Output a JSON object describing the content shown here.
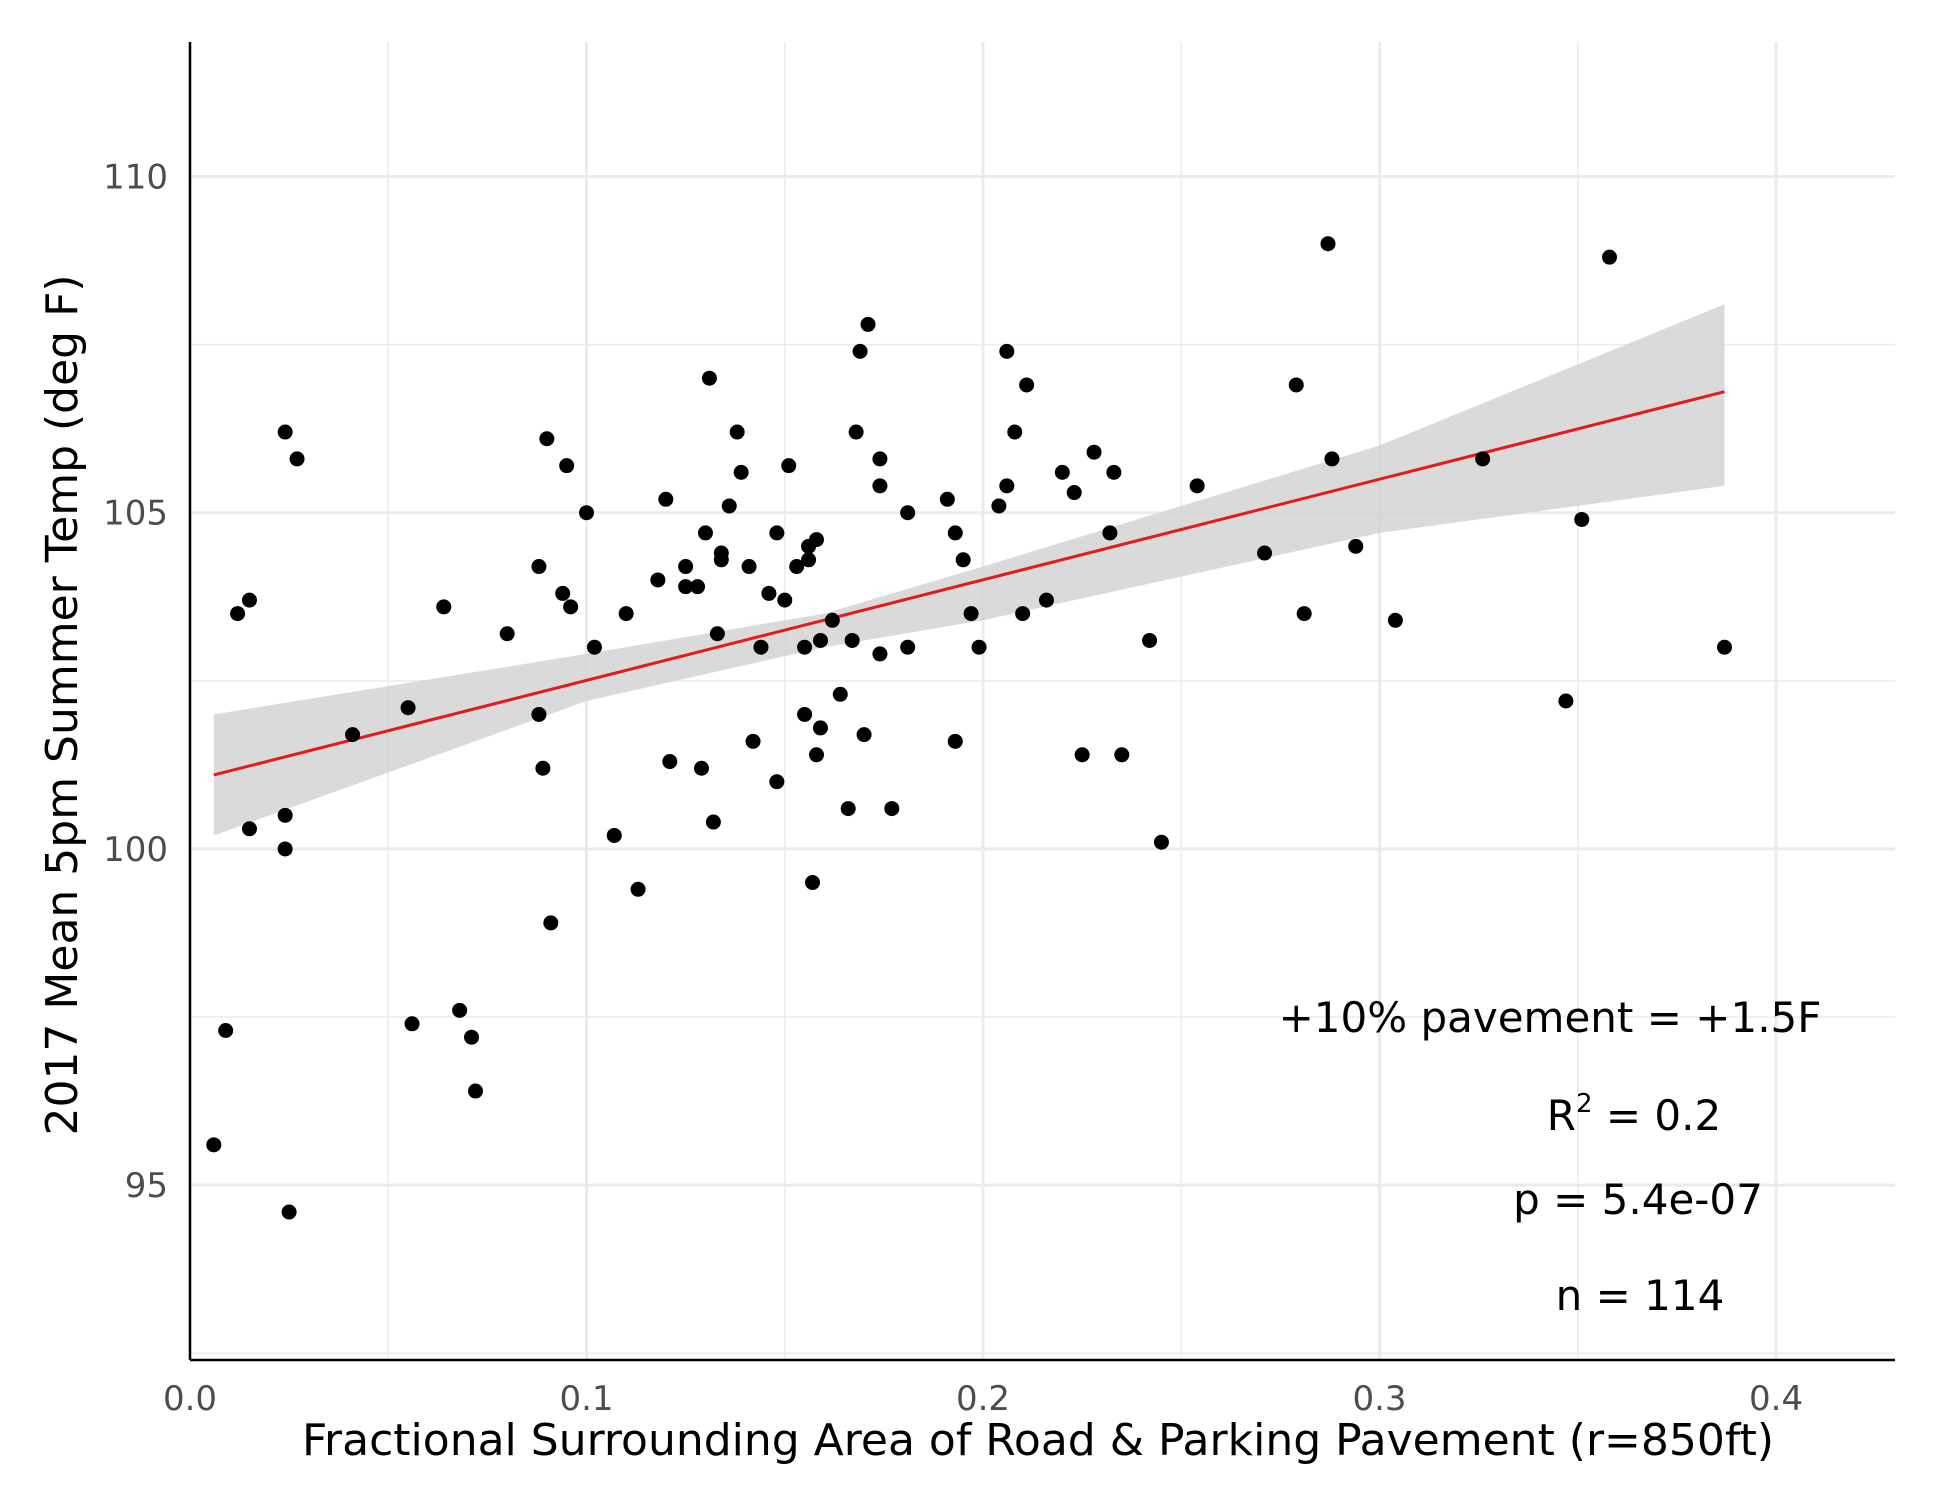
{
  "chart_data": {
    "type": "scatter",
    "xlabel": "Fractional Surrounding Area of Road & Parking Pavement (r=850ft)",
    "ylabel": "2017 Mean 5pm Summer Temp (deg F)",
    "xlim": [
      0.0,
      0.43
    ],
    "ylim": [
      92.4,
      112.0
    ],
    "x_ticks": [
      0.0,
      0.1,
      0.2,
      0.3,
      0.4
    ],
    "x_tick_labels": [
      "0.0",
      "0.1",
      "0.2",
      "0.3",
      "0.4"
    ],
    "y_ticks": [
      95,
      100,
      105,
      110
    ],
    "y_tick_labels": [
      "95",
      "100",
      "105",
      "110"
    ],
    "grid": true,
    "colors": {
      "points": "#000000",
      "fit_line": "#e41a1c",
      "confidence_band": "#d3d3d3",
      "grid": "#ebebeb",
      "axis": "#000000"
    },
    "fit": {
      "x_start": 0.006,
      "y_start": 101.1,
      "x_end": 0.387,
      "y_end": 106.8
    },
    "confidence_band": {
      "x": [
        0.006,
        0.1,
        0.16,
        0.2,
        0.3,
        0.387
      ],
      "lower": [
        100.2,
        102.2,
        103.0,
        103.4,
        104.7,
        105.4
      ],
      "upper": [
        102.0,
        102.9,
        103.5,
        104.2,
        106.0,
        108.1
      ]
    },
    "annotations": {
      "effect": "+10% pavement = +1.5F",
      "r2_label": "R",
      "r2_sup": "2",
      "r2_value": " = 0.2",
      "p_value": "p = 5.4e-07",
      "n": "n = 114"
    },
    "points": [
      [
        0.006,
        95.6
      ],
      [
        0.009,
        97.3
      ],
      [
        0.012,
        103.5
      ],
      [
        0.015,
        103.7
      ],
      [
        0.015,
        100.3
      ],
      [
        0.024,
        106.2
      ],
      [
        0.024,
        100.5
      ],
      [
        0.024,
        100.0
      ],
      [
        0.025,
        94.6
      ],
      [
        0.027,
        105.8
      ],
      [
        0.041,
        101.7
      ],
      [
        0.055,
        102.1
      ],
      [
        0.056,
        97.4
      ],
      [
        0.064,
        103.6
      ],
      [
        0.068,
        97.6
      ],
      [
        0.071,
        97.2
      ],
      [
        0.072,
        96.4
      ],
      [
        0.08,
        103.2
      ],
      [
        0.088,
        104.2
      ],
      [
        0.088,
        102.0
      ],
      [
        0.089,
        101.2
      ],
      [
        0.09,
        106.1
      ],
      [
        0.091,
        98.9
      ],
      [
        0.094,
        103.8
      ],
      [
        0.095,
        105.7
      ],
      [
        0.096,
        103.6
      ],
      [
        0.1,
        105.0
      ],
      [
        0.102,
        103.0
      ],
      [
        0.107,
        100.2
      ],
      [
        0.11,
        103.5
      ],
      [
        0.113,
        99.4
      ],
      [
        0.118,
        104.0
      ],
      [
        0.12,
        105.2
      ],
      [
        0.121,
        101.3
      ],
      [
        0.125,
        104.2
      ],
      [
        0.125,
        103.9
      ],
      [
        0.128,
        103.9
      ],
      [
        0.129,
        101.2
      ],
      [
        0.13,
        104.7
      ],
      [
        0.131,
        107.0
      ],
      [
        0.132,
        100.4
      ],
      [
        0.133,
        103.2
      ],
      [
        0.134,
        104.4
      ],
      [
        0.134,
        104.3
      ],
      [
        0.136,
        105.1
      ],
      [
        0.138,
        106.2
      ],
      [
        0.139,
        105.6
      ],
      [
        0.141,
        104.2
      ],
      [
        0.142,
        101.6
      ],
      [
        0.144,
        103.0
      ],
      [
        0.146,
        103.8
      ],
      [
        0.148,
        104.7
      ],
      [
        0.148,
        101.0
      ],
      [
        0.15,
        103.7
      ],
      [
        0.151,
        105.7
      ],
      [
        0.153,
        104.2
      ],
      [
        0.155,
        103.0
      ],
      [
        0.155,
        102.0
      ],
      [
        0.156,
        104.5
      ],
      [
        0.156,
        104.3
      ],
      [
        0.157,
        99.5
      ],
      [
        0.158,
        101.4
      ],
      [
        0.158,
        104.6
      ],
      [
        0.159,
        103.1
      ],
      [
        0.159,
        101.8
      ],
      [
        0.162,
        103.4
      ],
      [
        0.164,
        102.3
      ],
      [
        0.166,
        100.6
      ],
      [
        0.167,
        103.1
      ],
      [
        0.168,
        106.2
      ],
      [
        0.169,
        107.4
      ],
      [
        0.17,
        101.7
      ],
      [
        0.171,
        107.8
      ],
      [
        0.174,
        105.8
      ],
      [
        0.174,
        105.4
      ],
      [
        0.174,
        102.9
      ],
      [
        0.177,
        100.6
      ],
      [
        0.181,
        105.0
      ],
      [
        0.181,
        103.0
      ],
      [
        0.191,
        105.2
      ],
      [
        0.193,
        104.7
      ],
      [
        0.193,
        101.6
      ],
      [
        0.195,
        104.3
      ],
      [
        0.197,
        103.5
      ],
      [
        0.199,
        103.0
      ],
      [
        0.204,
        105.1
      ],
      [
        0.206,
        105.4
      ],
      [
        0.206,
        107.4
      ],
      [
        0.208,
        106.2
      ],
      [
        0.21,
        103.5
      ],
      [
        0.211,
        106.9
      ],
      [
        0.216,
        103.7
      ],
      [
        0.22,
        105.6
      ],
      [
        0.223,
        105.3
      ],
      [
        0.225,
        101.4
      ],
      [
        0.228,
        105.9
      ],
      [
        0.232,
        104.7
      ],
      [
        0.233,
        105.6
      ],
      [
        0.235,
        101.4
      ],
      [
        0.242,
        103.1
      ],
      [
        0.245,
        100.1
      ],
      [
        0.254,
        105.4
      ],
      [
        0.271,
        104.4
      ],
      [
        0.279,
        106.9
      ],
      [
        0.281,
        103.5
      ],
      [
        0.287,
        109.0
      ],
      [
        0.288,
        105.8
      ],
      [
        0.294,
        104.5
      ],
      [
        0.304,
        103.4
      ],
      [
        0.326,
        105.8
      ],
      [
        0.347,
        102.2
      ],
      [
        0.351,
        104.9
      ],
      [
        0.358,
        108.8
      ],
      [
        0.387,
        103.0
      ]
    ]
  }
}
